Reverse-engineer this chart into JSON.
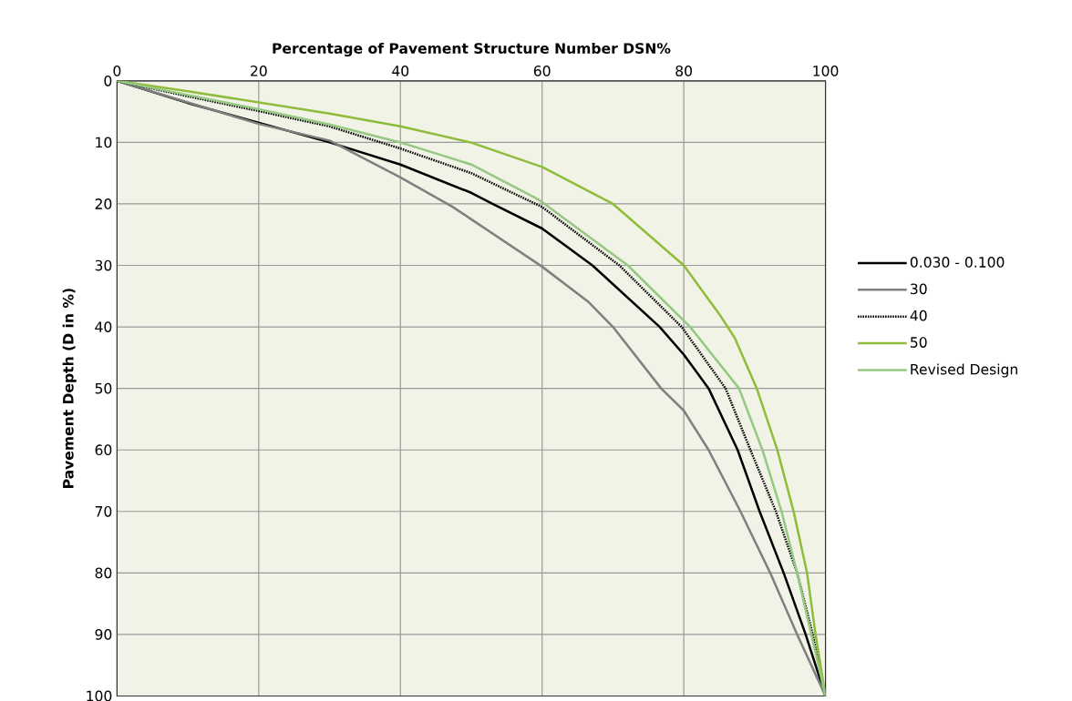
{
  "chart_data": {
    "type": "line",
    "xlabel": "Percentage of Pavement Structure Number DSN%",
    "ylabel": "Pavement Depth (D in %)",
    "xlim": [
      0,
      100
    ],
    "ylim": [
      100,
      0
    ],
    "xticks": [
      0,
      20,
      40,
      60,
      80,
      100
    ],
    "yticks": [
      0,
      10,
      20,
      30,
      40,
      50,
      60,
      70,
      80,
      90,
      100
    ],
    "grid": true,
    "legend": "right",
    "series": [
      {
        "name": "0.030 - 0.100",
        "color": "#000000",
        "line_style": "solid",
        "x": [
          0,
          10,
          20,
          30,
          40,
          50,
          53,
          60,
          67.1,
          76.6,
          80,
          83.5,
          87.6,
          90.7,
          94.1,
          97.2,
          100
        ],
        "values": [
          0,
          3.6,
          6.8,
          10,
          13.6,
          18.2,
          20,
          24,
          30,
          40,
          44.5,
          50,
          60,
          70,
          80,
          90,
          100
        ]
      },
      {
        "name": "30",
        "color": "#808080",
        "line_style": "solid",
        "x": [
          0,
          10,
          20,
          30,
          40,
          47.4,
          50,
          60,
          66.6,
          70,
          76.8,
          80,
          83.5,
          88,
          92.2,
          96,
          100
        ],
        "values": [
          0,
          3.5,
          7,
          9.7,
          15.7,
          20.5,
          22.5,
          30.2,
          36,
          40,
          50,
          53.6,
          60,
          70,
          80,
          90,
          100
        ]
      },
      {
        "name": "40",
        "color": "#000000",
        "line_style": "dotted",
        "x": [
          0,
          10,
          20,
          30,
          40,
          50,
          60,
          70.9,
          79.7,
          85.9,
          89.4,
          93,
          96,
          98.2,
          100
        ],
        "values": [
          0,
          2.5,
          4.9,
          7.4,
          11,
          15,
          20.5,
          30,
          40,
          50,
          60,
          70,
          80,
          90,
          100
        ]
      },
      {
        "name": "50",
        "color": "#8fbc3a",
        "line_style": "solid",
        "x": [
          0,
          10,
          20,
          30,
          40,
          49.9,
          60,
          70,
          80,
          85,
          87.2,
          90.3,
          93.2,
          95.5,
          97.4,
          98.6,
          100
        ],
        "values": [
          0,
          1.7,
          3.5,
          5.3,
          7.4,
          10,
          14,
          20,
          30,
          37.9,
          41.8,
          50,
          60,
          70,
          80,
          90,
          100
        ]
      },
      {
        "name": "Revised Design",
        "color": "#95c882",
        "line_style": "solid",
        "x": [
          0,
          10,
          20,
          30,
          40,
          50,
          59,
          60,
          72.1,
          80.9,
          87.8,
          91.1,
          93.8,
          96,
          98,
          100
        ],
        "values": [
          0,
          2.3,
          4.6,
          7.1,
          10,
          13.6,
          19,
          19.7,
          30,
          40,
          50,
          60,
          70,
          80,
          90,
          100
        ]
      }
    ]
  }
}
